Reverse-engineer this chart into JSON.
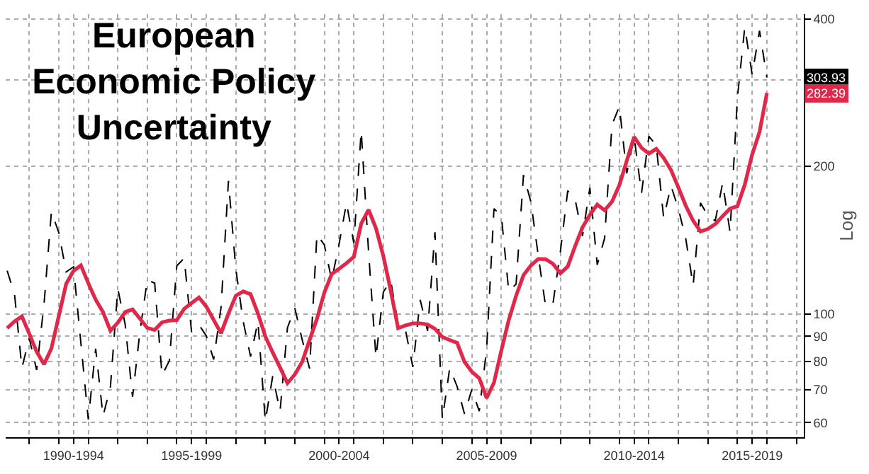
{
  "chart_data": {
    "type": "line",
    "title": "European\nEconomic Policy\nUncertainty",
    "ylabel": "Log",
    "log": true,
    "grid": true,
    "marker": "none",
    "categories": [
      null,
      null,
      null,
      null,
      null,
      null,
      null,
      null,
      null,
      "1990-1994",
      null,
      null,
      null,
      null,
      null,
      null,
      null,
      null,
      null,
      null,
      null,
      null,
      null,
      null,
      null,
      "1995-1999",
      null,
      null,
      null,
      null,
      null,
      null,
      null,
      null,
      null,
      null,
      null,
      null,
      null,
      null,
      null,
      null,
      null,
      null,
      null,
      "2000-2004",
      null,
      null,
      null,
      null,
      null,
      null,
      null,
      null,
      null,
      null,
      null,
      null,
      null,
      null,
      null,
      null,
      null,
      null,
      null,
      "2005-2009",
      null,
      null,
      null,
      null,
      null,
      null,
      null,
      null,
      null,
      null,
      null,
      null,
      null,
      null,
      null,
      null,
      null,
      null,
      null,
      "2010-2014",
      null,
      null,
      null,
      null,
      null,
      null,
      null,
      null,
      null,
      null,
      null,
      null,
      null,
      null,
      null,
      "2015-2019",
      null,
      null,
      null,
      null,
      null,
      null,
      null
    ],
    "ylim": [
      56,
      409
    ],
    "yticks": [
      60,
      70,
      80,
      90,
      100,
      200,
      {
        "value": 300,
        "label": null
      },
      400
    ],
    "annotations": [
      {
        "text": "303.93",
        "y": 303.93
      },
      {
        "text": "282.39",
        "y": 282.39
      }
    ],
    "series": [
      {
        "color": "#000000",
        "line_style": "dashed",
        "values": [
          122.5,
          109.7,
          77.6,
          89.1,
          76.8,
          104.6,
          161.6,
          146.5,
          121.8,
          124.7,
          87.1,
          60.9,
          84.9,
          61.8,
          70.9,
          112.6,
          95.2,
          67.7,
          91.9,
          117.4,
          115.5,
          74.9,
          80.3,
          125.3,
          129.9,
          91.9,
          95,
          90.2,
          80.7,
          103.1,
          186.8,
          123.5,
          96.5,
          81.8,
          96.5,
          60.4,
          74.6,
          63.3,
          93.7,
          102.7,
          88.5,
          77.3,
          145.3,
          138.3,
          117.1,
          138.8,
          168.4,
          139.4,
          236.7,
          133.8,
          81.5,
          110.8,
          117,
          95.4,
          92.7,
          77.9,
          106.8,
          92.3,
          146.7,
          60.9,
          77.5,
          71.1,
          62.5,
          70.1,
          63.3,
          84.6,
          163.9,
          158.6,
          111.2,
          115,
          192,
          169.4,
          131.6,
          103.6,
          105,
          134,
          178.3,
          171.2,
          144.2,
          180.9,
          125.9,
          142.8,
          243.3,
          265.1,
          193.5,
          229.9,
          176.2,
          230.4,
          220.9,
          156.9,
          182.5,
          163.8,
          142.3,
          114.2,
          168.5,
          158.5,
          154.9,
          185.1,
          146.8,
          276.1,
          384.7,
          308,
          378.3,
          303.93,
          null,
          null,
          null,
          null,
          null
        ]
      },
      {
        "color": "#e0284a",
        "line_style": "solid",
        "values": [
          93.5,
          96.5,
          98.8,
          91.1,
          83.7,
          78.9,
          85,
          98.9,
          115.1,
          122.4,
          125.6,
          115.5,
          106.9,
          100.8,
          92.4,
          95.9,
          100.9,
          102.1,
          97.8,
          93.6,
          92.7,
          96.1,
          96.9,
          97.1,
          102.4,
          105.2,
          108,
          103.5,
          97.2,
          91.3,
          100.1,
          108.9,
          111.1,
          109.7,
          100.2,
          89.9,
          83.4,
          77.7,
          72.2,
          75.2,
          79.8,
          88.4,
          97.7,
          110.5,
          120.6,
          123.6,
          126.9,
          130.7,
          152.8,
          163.1,
          149.5,
          131.2,
          111.6,
          93.5,
          94.7,
          95.6,
          95.6,
          95.1,
          93.2,
          89.7,
          88.4,
          87.3,
          79.8,
          76.2,
          73.9,
          67.3,
          72.4,
          84.2,
          97.1,
          108.9,
          119.9,
          125.5,
          129.4,
          129.3,
          126.5,
          121,
          124.9,
          137.5,
          150.1,
          159.2,
          167.1,
          162.7,
          169.4,
          183.2,
          205.4,
          229.6,
          218.2,
          212.4,
          217.1,
          208.1,
          196.6,
          181.1,
          166.2,
          154.9,
          147.3,
          149,
          152.5,
          158.3,
          164,
          165.8,
          183.5,
          211.5,
          235.1,
          282.39,
          null,
          null,
          null,
          null,
          null
        ]
      }
    ]
  }
}
